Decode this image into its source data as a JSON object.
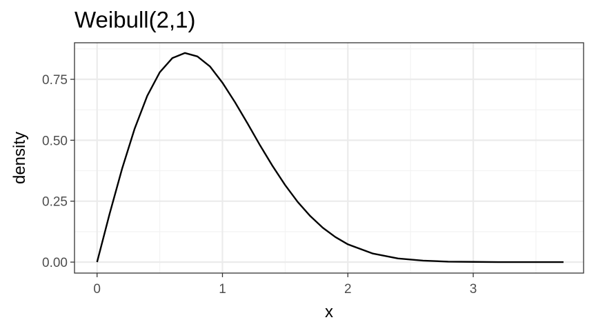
{
  "chart_data": {
    "type": "line",
    "title": "Weibull(2,1)",
    "xlabel": "x",
    "ylabel": "density",
    "xlim": [
      -0.18,
      3.88
    ],
    "ylim": [
      -0.045,
      0.9
    ],
    "x_ticks": [
      0,
      1,
      2,
      3
    ],
    "x_tick_labels": [
      "0",
      "1",
      "2",
      "3"
    ],
    "y_ticks": [
      0,
      0.25,
      0.5,
      0.75
    ],
    "y_tick_labels": [
      "0.00",
      "0.25",
      "0.50",
      "0.75"
    ],
    "grid": true,
    "series": [
      {
        "color": "#000000",
        "x": [
          0,
          0.1,
          0.2,
          0.3,
          0.4,
          0.5,
          0.6,
          0.7,
          0.8,
          0.9,
          1.0,
          1.1,
          1.2,
          1.3,
          1.4,
          1.5,
          1.6,
          1.7,
          1.8,
          1.9,
          2.0,
          2.2,
          2.4,
          2.6,
          2.8,
          3.0,
          3.2,
          3.4,
          3.6,
          3.72
        ],
        "y": [
          0,
          0.198,
          0.384,
          0.548,
          0.682,
          0.779,
          0.837,
          0.858,
          0.844,
          0.803,
          0.736,
          0.656,
          0.569,
          0.479,
          0.394,
          0.316,
          0.247,
          0.189,
          0.141,
          0.103,
          0.073,
          0.035,
          0.015,
          0.006,
          0.002,
          0.001,
          0.0,
          0.0,
          0.0,
          0.0
        ]
      }
    ]
  }
}
